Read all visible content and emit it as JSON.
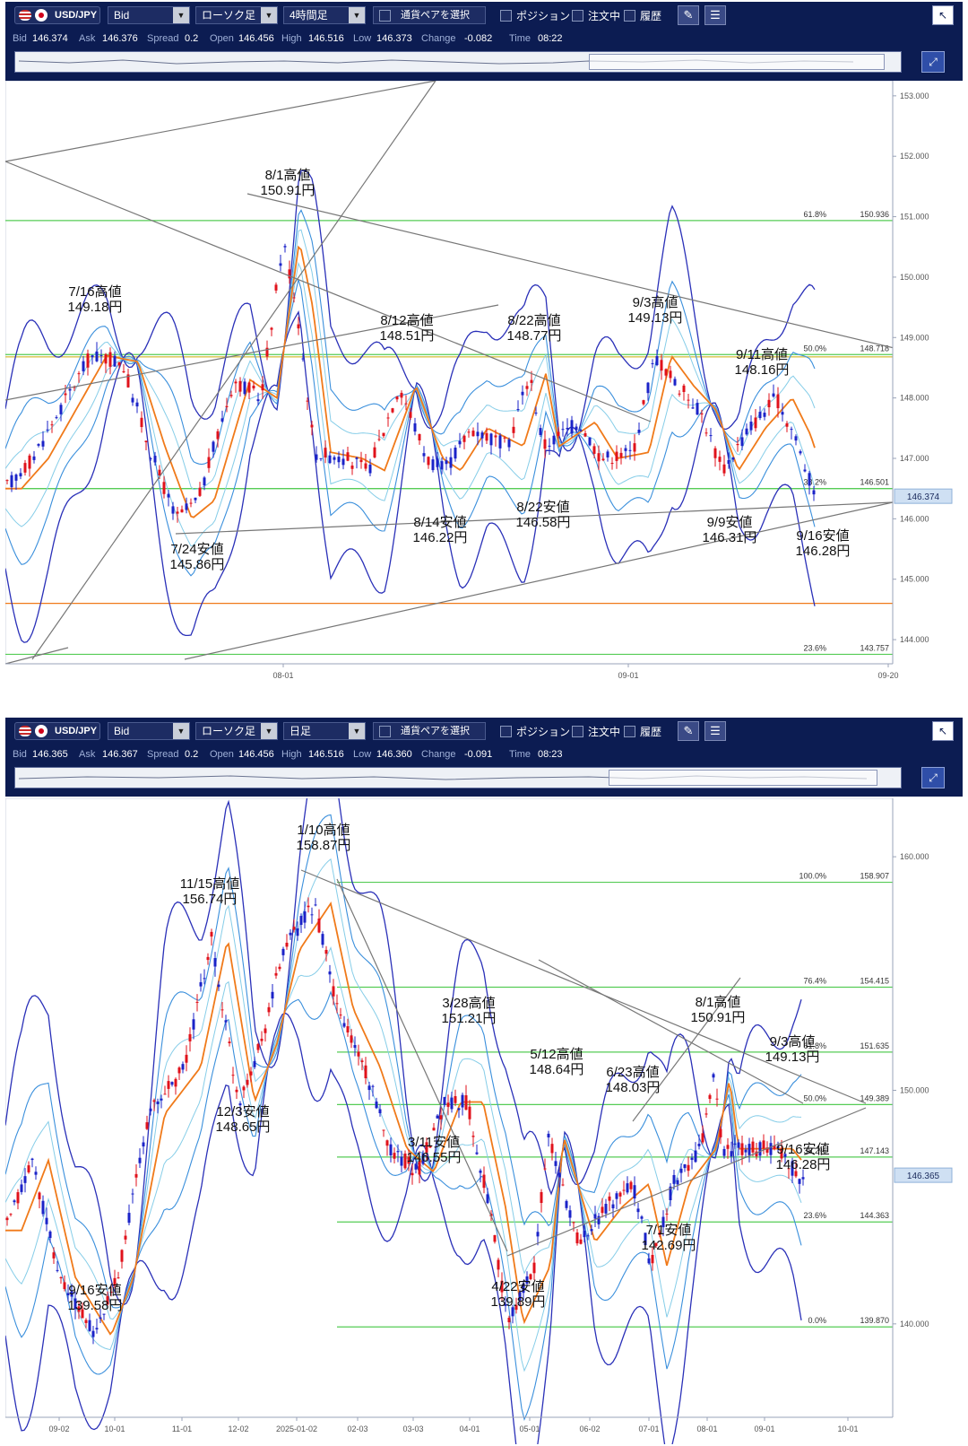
{
  "panels": [
    {
      "symbol": "USD/JPY",
      "price_type": "Bid",
      "chart_style": "ローソク足",
      "timeframe": "4時間足",
      "pair_select": "通貨ペアを選択",
      "position": "ポジション",
      "orders": "注文中",
      "history": "履歴",
      "quote": {
        "bid_k": "Bid",
        "bid": "146.374",
        "ask_k": "Ask",
        "ask": "146.376",
        "spread_k": "Spread",
        "spread": "0.2",
        "open_k": "Open",
        "open": "146.456",
        "high_k": "High",
        "high": "146.516",
        "low_k": "Low",
        "low": "146.373",
        "change_k": "Change",
        "change": "-0.082",
        "time_k": "Time",
        "time": "08:22"
      },
      "current_price": "146.374",
      "y_ticks": [
        "153.000",
        "152.000",
        "151.000",
        "150.000",
        "149.000",
        "148.000",
        "147.000",
        "146.000",
        "145.000",
        "144.000"
      ],
      "x_ticks": [
        "08-01",
        "09-01",
        "09-20"
      ],
      "fib_levels": [
        {
          "label": "61.8%",
          "value": "150.936"
        },
        {
          "label": "50.0%",
          "value": "148.718"
        },
        {
          "label": "38.2%",
          "value": "146.501"
        },
        {
          "label": "23.6%",
          "value": "143.757"
        }
      ],
      "annotations": [
        {
          "date": "7/16高値",
          "price": "149.18円"
        },
        {
          "date": "8/1高値",
          "price": "150.91円"
        },
        {
          "date": "8/12高値",
          "price": "148.51円"
        },
        {
          "date": "8/22高値",
          "price": "148.77円"
        },
        {
          "date": "9/3高値",
          "price": "149.13円"
        },
        {
          "date": "9/11高値",
          "price": "148.16円"
        },
        {
          "date": "7/24安値",
          "price": "145.86円"
        },
        {
          "date": "8/14安値",
          "price": "146.22円"
        },
        {
          "date": "8/22安値",
          "price": "146.58円"
        },
        {
          "date": "9/9安値",
          "price": "146.31円"
        },
        {
          "date": "9/16安値",
          "price": "146.28円"
        }
      ],
      "colors": {
        "bull": "#e0121b",
        "bear": "#1b23c8",
        "ma": "#f07a1a",
        "band_outer": "#2a30b8",
        "band_mid": "#3a8fdc",
        "band_inner": "#86cde8",
        "fib": "#55cc55",
        "horizontal": "#f07a1a",
        "trend": "#777777"
      }
    },
    {
      "symbol": "USD/JPY",
      "price_type": "Bid",
      "chart_style": "ローソク足",
      "timeframe": "日足",
      "pair_select": "通貨ペアを選択",
      "position": "ポジション",
      "orders": "注文中",
      "history": "履歴",
      "quote": {
        "bid_k": "Bid",
        "bid": "146.365",
        "ask_k": "Ask",
        "ask": "146.367",
        "spread_k": "Spread",
        "spread": "0.2",
        "open_k": "Open",
        "open": "146.456",
        "high_k": "High",
        "high": "146.516",
        "low_k": "Low",
        "low": "146.360",
        "change_k": "Change",
        "change": "-0.091",
        "time_k": "Time",
        "time": "08:23"
      },
      "current_price": "146.365",
      "y_ticks": [
        "160.000",
        "150.000",
        "140.000"
      ],
      "x_ticks": [
        "09-02",
        "10-01",
        "11-01",
        "12-02",
        "2025-01-02",
        "02-03",
        "03-03",
        "04-01",
        "05-01",
        "06-02",
        "07-01",
        "08-01",
        "09-01",
        "10-01"
      ],
      "fib_levels": [
        {
          "label": "100.0%",
          "value": "158.907"
        },
        {
          "label": "76.4%",
          "value": "154.415"
        },
        {
          "label": "61.8%",
          "value": "151.635"
        },
        {
          "label": "50.0%",
          "value": "149.389"
        },
        {
          "label": "38.2%",
          "value": "147.143"
        },
        {
          "label": "23.6%",
          "value": "144.363"
        },
        {
          "label": "0.0%",
          "value": "139.870"
        }
      ],
      "annotations": [
        {
          "date": "1/10高値",
          "price": "158.87円"
        },
        {
          "date": "11/15高値",
          "price": "156.74円"
        },
        {
          "date": "3/28高値",
          "price": "151.21円"
        },
        {
          "date": "5/12高値",
          "price": "148.64円"
        },
        {
          "date": "6/23高値",
          "price": "148.03円"
        },
        {
          "date": "8/1高値",
          "price": "150.91円"
        },
        {
          "date": "9/3高値",
          "price": "149.13円"
        },
        {
          "date": "12/3安値",
          "price": "148.65円"
        },
        {
          "date": "3/11安値",
          "price": "146.55円"
        },
        {
          "date": "9/16安値",
          "price": "146.28円"
        },
        {
          "date": "7/1安値",
          "price": "142.69円"
        },
        {
          "date": "9/16安値",
          "price": "139.58円"
        },
        {
          "date": "4/22安値",
          "price": "139.89円"
        }
      ],
      "colors": {
        "bull": "#e0121b",
        "bear": "#1b23c8",
        "ma": "#f07a1a",
        "band_outer": "#2a30b8",
        "band_mid": "#3a8fdc",
        "band_inner": "#86cde8",
        "fib": "#55cc55",
        "trend": "#777777"
      }
    }
  ]
}
